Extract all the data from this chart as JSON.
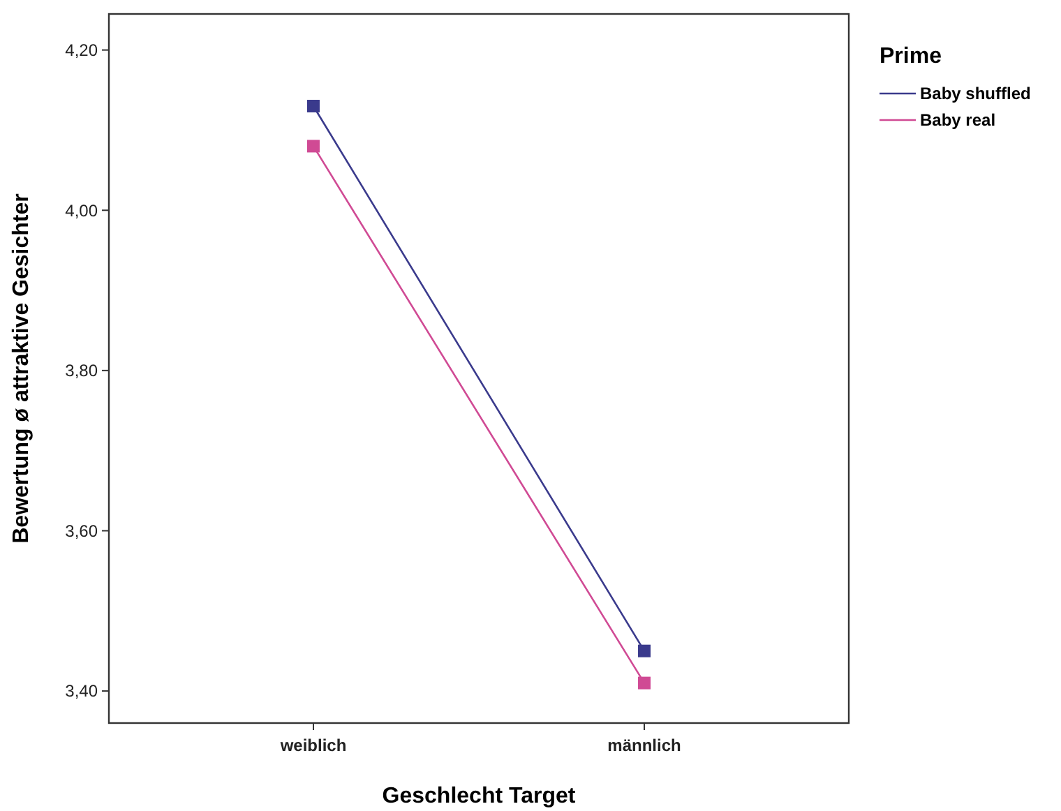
{
  "chart_data": {
    "type": "line",
    "xlabel": "Geschlecht Target",
    "ylabel": "Bewertung ø attraktive Gesichter",
    "legend_title": "Prime",
    "categories": [
      "weiblich",
      "männlich"
    ],
    "series": [
      {
        "name": "Baby shuffled",
        "color": "#3a3a8c",
        "values": [
          4.13,
          3.45
        ]
      },
      {
        "name": "Baby real",
        "color": "#d04a94",
        "values": [
          4.08,
          3.41
        ]
      }
    ],
    "ylim": [
      3.36,
      4.245
    ],
    "yticks": [
      {
        "value": 3.4,
        "label": "3,40"
      },
      {
        "value": 3.6,
        "label": "3,60"
      },
      {
        "value": 3.8,
        "label": "3,80"
      },
      {
        "value": 4.0,
        "label": "4,00"
      },
      {
        "value": 4.2,
        "label": "4,20"
      }
    ],
    "grid": false,
    "legend": "top right",
    "marker": "square",
    "line_style": "solid"
  }
}
